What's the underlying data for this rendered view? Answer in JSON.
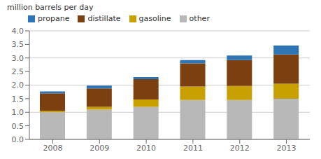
{
  "chart_data": {
    "type": "bar",
    "stacked": true,
    "ylabel": "million barrels  per day",
    "categories": [
      "2008",
      "2009",
      "2010",
      "2011",
      "2012",
      "2013"
    ],
    "series": [
      {
        "name": "other",
        "color": "#b8b8b8",
        "values": [
          1.0,
          1.1,
          1.2,
          1.45,
          1.45,
          1.5
        ]
      },
      {
        "name": "gasoline",
        "color": "#c8a000",
        "values": [
          0.05,
          0.1,
          0.27,
          0.5,
          0.52,
          0.55
        ]
      },
      {
        "name": "distillate",
        "color": "#7b3f10",
        "values": [
          0.65,
          0.68,
          0.75,
          0.85,
          0.95,
          1.08
        ]
      },
      {
        "name": "propane",
        "color": "#2e75b6",
        "values": [
          0.07,
          0.1,
          0.08,
          0.12,
          0.17,
          0.33
        ]
      }
    ],
    "ylim": [
      0.0,
      4.0
    ],
    "yticks": [
      {
        "value": 0.0,
        "label": "0.0"
      },
      0.5,
      {
        "value": 1.0,
        "label": "1.0"
      },
      1.5,
      {
        "value": 2.0,
        "label": "2.0"
      },
      2.5,
      {
        "value": 3.0,
        "label": "3.0"
      },
      3.5,
      {
        "value": 4.0,
        "label": "4.0"
      }
    ],
    "grid": true,
    "legend": "upper left"
  }
}
